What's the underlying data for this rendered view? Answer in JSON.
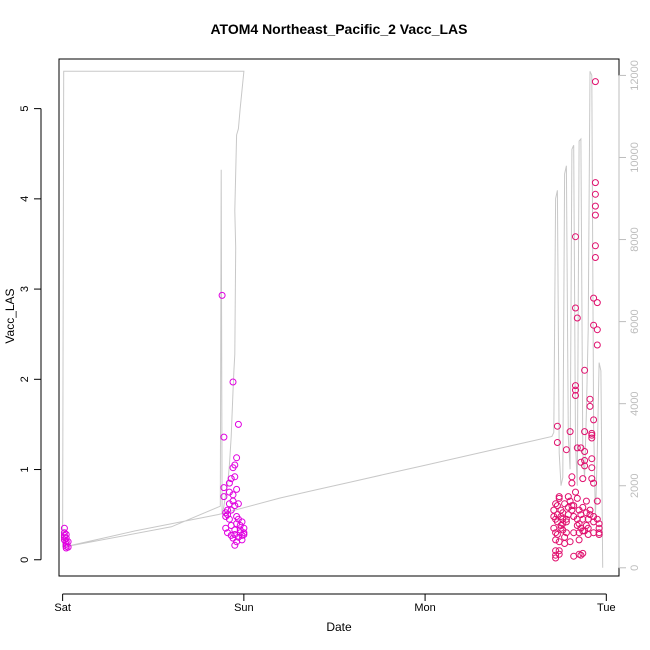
{
  "chart_data": {
    "type": "scatter",
    "title": "ATOM4 Northeast_Pacific_2 Vacc_LAS",
    "xlabel": "Date",
    "ylabel": "Vacc_LAS",
    "x_ticks": [
      "Sat",
      "Sun",
      "Mon",
      "Tue"
    ],
    "x_range_days": [
      -0.02,
      3.07
    ],
    "ylim": [
      -0.18,
      5.55
    ],
    "y_ticks": [
      0,
      1,
      2,
      3,
      4,
      5
    ],
    "secondary_ylim": [
      -200,
      12400
    ],
    "secondary_y_ticks": [
      0,
      2000,
      4000,
      6000,
      8000,
      10000,
      12000
    ],
    "grid": false,
    "colors": {
      "points_day1": "#e000e0",
      "points_late": "#e0106e",
      "line": "#c8c8c8",
      "axis": "#000000",
      "secondary_axis": "#bdbdbd"
    },
    "series": [
      {
        "kind": "points",
        "points": [
          [
            0.01,
            0.35
          ],
          [
            0.01,
            0.3
          ],
          [
            0.01,
            0.27
          ],
          [
            0.01,
            0.25
          ],
          [
            0.01,
            0.22
          ],
          [
            0.02,
            0.28
          ],
          [
            0.02,
            0.24
          ],
          [
            0.02,
            0.2
          ],
          [
            0.02,
            0.17
          ],
          [
            0.02,
            0.15
          ],
          [
            0.02,
            0.13
          ],
          [
            0.03,
            0.2
          ],
          [
            0.03,
            0.14
          ],
          [
            0.88,
            2.93
          ],
          [
            0.89,
            1.36
          ],
          [
            0.89,
            0.8
          ],
          [
            0.89,
            0.7
          ],
          [
            0.9,
            0.52
          ],
          [
            0.9,
            0.48
          ],
          [
            0.9,
            0.35
          ],
          [
            0.91,
            0.3
          ],
          [
            0.91,
            0.55
          ],
          [
            0.91,
            0.5
          ],
          [
            0.92,
            0.45
          ],
          [
            0.92,
            0.62
          ],
          [
            0.92,
            0.75
          ],
          [
            0.92,
            0.85
          ],
          [
            0.93,
            0.9
          ],
          [
            0.93,
            0.38
          ],
          [
            0.93,
            0.27
          ],
          [
            0.93,
            0.55
          ],
          [
            0.94,
            0.65
          ],
          [
            0.94,
            0.72
          ],
          [
            0.94,
            1.02
          ],
          [
            0.94,
            0.24
          ],
          [
            0.94,
            1.97
          ],
          [
            0.95,
            0.92
          ],
          [
            0.95,
            1.05
          ],
          [
            0.95,
            0.28
          ],
          [
            0.95,
            0.33
          ],
          [
            0.95,
            0.6
          ],
          [
            0.95,
            0.16
          ],
          [
            0.96,
            1.13
          ],
          [
            0.96,
            0.78
          ],
          [
            0.96,
            0.48
          ],
          [
            0.96,
            0.4
          ],
          [
            0.96,
            0.2
          ],
          [
            0.97,
            1.5
          ],
          [
            0.97,
            0.62
          ],
          [
            0.97,
            0.45
          ],
          [
            0.97,
            0.25
          ],
          [
            0.98,
            0.38
          ],
          [
            0.98,
            0.3
          ],
          [
            0.98,
            0.33
          ],
          [
            0.99,
            0.27
          ],
          [
            0.99,
            0.42
          ],
          [
            0.99,
            0.22
          ],
          [
            1.0,
            0.3
          ],
          [
            1.0,
            0.28
          ],
          [
            1.0,
            0.35
          ]
        ]
      },
      {
        "kind": "points",
        "points": [
          [
            2.71,
            0.55
          ],
          [
            2.71,
            0.48
          ],
          [
            2.71,
            0.35
          ],
          [
            2.72,
            0.3
          ],
          [
            2.72,
            0.45
          ],
          [
            2.72,
            0.62
          ],
          [
            2.72,
            0.22
          ],
          [
            2.72,
            0.05
          ],
          [
            2.72,
            0.02
          ],
          [
            2.72,
            0.1
          ],
          [
            2.73,
            0.5
          ],
          [
            2.73,
            0.42
          ],
          [
            2.73,
            1.3
          ],
          [
            2.73,
            1.48
          ],
          [
            2.73,
            0.6
          ],
          [
            2.73,
            0.28
          ],
          [
            2.74,
            0.7
          ],
          [
            2.74,
            0.68
          ],
          [
            2.74,
            0.1
          ],
          [
            2.74,
            0.06
          ],
          [
            2.74,
            0.2
          ],
          [
            2.75,
            0.35
          ],
          [
            2.75,
            0.48
          ],
          [
            2.75,
            0.38
          ],
          [
            2.75,
            0.55
          ],
          [
            2.76,
            0.4
          ],
          [
            2.76,
            0.45
          ],
          [
            2.76,
            0.52
          ],
          [
            2.76,
            0.33
          ],
          [
            2.77,
            0.62
          ],
          [
            2.77,
            0.25
          ],
          [
            2.77,
            0.18
          ],
          [
            2.78,
            1.22
          ],
          [
            2.78,
            0.45
          ],
          [
            2.78,
            0.42
          ],
          [
            2.78,
            0.3
          ],
          [
            2.79,
            0.7
          ],
          [
            2.79,
            0.58
          ],
          [
            2.79,
            0.5
          ],
          [
            2.8,
            1.42
          ],
          [
            2.8,
            0.65
          ],
          [
            2.8,
            0.2
          ],
          [
            2.81,
            0.92
          ],
          [
            2.81,
            0.85
          ],
          [
            2.81,
            0.55
          ],
          [
            2.81,
            0.6
          ],
          [
            2.82,
            0.48
          ],
          [
            2.82,
            0.3
          ],
          [
            2.82,
            0.04
          ],
          [
            2.82,
            0.6
          ],
          [
            2.83,
            1.93
          ],
          [
            2.83,
            1.88
          ],
          [
            2.83,
            1.82
          ],
          [
            2.83,
            2.79
          ],
          [
            2.83,
            3.58
          ],
          [
            2.83,
            0.75
          ],
          [
            2.84,
            2.68
          ],
          [
            2.84,
            1.24
          ],
          [
            2.84,
            0.68
          ],
          [
            2.84,
            0.45
          ],
          [
            2.84,
            0.38
          ],
          [
            2.85,
            0.55
          ],
          [
            2.85,
            0.4
          ],
          [
            2.85,
            0.3
          ],
          [
            2.85,
            0.22
          ],
          [
            2.85,
            0.06
          ],
          [
            2.86,
            1.24
          ],
          [
            2.86,
            1.08
          ],
          [
            2.86,
            0.5
          ],
          [
            2.86,
            0.35
          ],
          [
            2.86,
            0.05
          ],
          [
            2.87,
            0.58
          ],
          [
            2.87,
            0.45
          ],
          [
            2.87,
            0.32
          ],
          [
            2.87,
            0.9
          ],
          [
            2.87,
            0.07
          ],
          [
            2.88,
            2.1
          ],
          [
            2.88,
            1.42
          ],
          [
            2.88,
            1.2
          ],
          [
            2.88,
            1.1
          ],
          [
            2.88,
            1.04
          ],
          [
            2.88,
            0.32
          ],
          [
            2.89,
            0.65
          ],
          [
            2.89,
            0.52
          ],
          [
            2.89,
            0.38
          ],
          [
            2.9,
            0.45
          ],
          [
            2.9,
            0.28
          ],
          [
            2.9,
            0.35
          ],
          [
            2.91,
            0.55
          ],
          [
            2.91,
            0.5
          ],
          [
            2.91,
            1.78
          ],
          [
            2.91,
            1.7
          ],
          [
            2.92,
            1.4
          ],
          [
            2.92,
            1.35
          ],
          [
            2.92,
            1.38
          ],
          [
            2.92,
            1.12
          ],
          [
            2.92,
            1.02
          ],
          [
            2.92,
            0.9
          ],
          [
            2.93,
            0.85
          ],
          [
            2.93,
            0.48
          ],
          [
            2.93,
            0.42
          ],
          [
            2.93,
            0.3
          ],
          [
            2.93,
            1.55
          ],
          [
            2.93,
            2.6
          ],
          [
            2.93,
            2.9
          ],
          [
            2.94,
            3.82
          ],
          [
            2.94,
            3.92
          ],
          [
            2.94,
            4.05
          ],
          [
            2.94,
            4.18
          ],
          [
            2.94,
            3.48
          ],
          [
            2.94,
            3.35
          ],
          [
            2.94,
            5.3
          ],
          [
            2.95,
            2.85
          ],
          [
            2.95,
            2.55
          ],
          [
            2.95,
            2.38
          ],
          [
            2.95,
            0.65
          ],
          [
            2.95,
            0.45
          ],
          [
            2.96,
            0.4
          ],
          [
            2.96,
            0.35
          ],
          [
            2.96,
            0.3
          ],
          [
            2.96,
            0.28
          ]
        ]
      },
      {
        "kind": "line",
        "axis": "secondary",
        "points": [
          [
            0.0,
            500
          ],
          [
            0.006,
            12100
          ],
          [
            0.5,
            12100
          ],
          [
            1.0,
            12100
          ],
          [
            0.98,
            11200
          ],
          [
            0.97,
            10700
          ],
          [
            0.96,
            10550
          ],
          [
            0.95,
            8700
          ],
          [
            0.955,
            7800
          ],
          [
            0.95,
            5200
          ],
          [
            0.945,
            4800
          ],
          [
            0.94,
            4300
          ],
          [
            0.93,
            3200
          ],
          [
            0.92,
            2500
          ],
          [
            0.91,
            2000
          ],
          [
            0.9,
            1800
          ],
          [
            0.89,
            1500
          ],
          [
            0.88,
            1300
          ],
          [
            0.875,
            9700
          ],
          [
            0.87,
            1500
          ],
          [
            0.6,
            1000
          ],
          [
            0.0,
            500
          ],
          [
            0.2,
            700
          ],
          [
            0.4,
            900
          ],
          [
            0.86,
            1300
          ],
          [
            1.2,
            1700
          ],
          [
            1.4,
            1900
          ],
          [
            1.6,
            2100
          ],
          [
            1.8,
            2300
          ],
          [
            2.0,
            2500
          ],
          [
            2.2,
            2700
          ],
          [
            2.4,
            2900
          ],
          [
            2.6,
            3100
          ],
          [
            2.7,
            3200
          ],
          [
            2.71,
            3300
          ],
          [
            2.72,
            9000
          ],
          [
            2.73,
            9200
          ],
          [
            2.74,
            2800
          ],
          [
            2.75,
            2000
          ],
          [
            2.76,
            2200
          ],
          [
            2.77,
            9600
          ],
          [
            2.78,
            9800
          ],
          [
            2.79,
            3200
          ],
          [
            2.8,
            2400
          ],
          [
            2.81,
            10200
          ],
          [
            2.82,
            10300
          ],
          [
            2.83,
            3000
          ],
          [
            2.84,
            2000
          ],
          [
            2.85,
            10400
          ],
          [
            2.86,
            10450
          ],
          [
            2.87,
            2800
          ],
          [
            2.88,
            2200
          ],
          [
            2.89,
            3800
          ],
          [
            2.9,
            5800
          ],
          [
            2.91,
            12100
          ],
          [
            2.92,
            12000
          ],
          [
            2.93,
            3500
          ],
          [
            2.94,
            1200
          ],
          [
            2.95,
            2800
          ],
          [
            2.96,
            5000
          ],
          [
            2.97,
            4800
          ],
          [
            2.98,
            0
          ]
        ]
      }
    ]
  }
}
